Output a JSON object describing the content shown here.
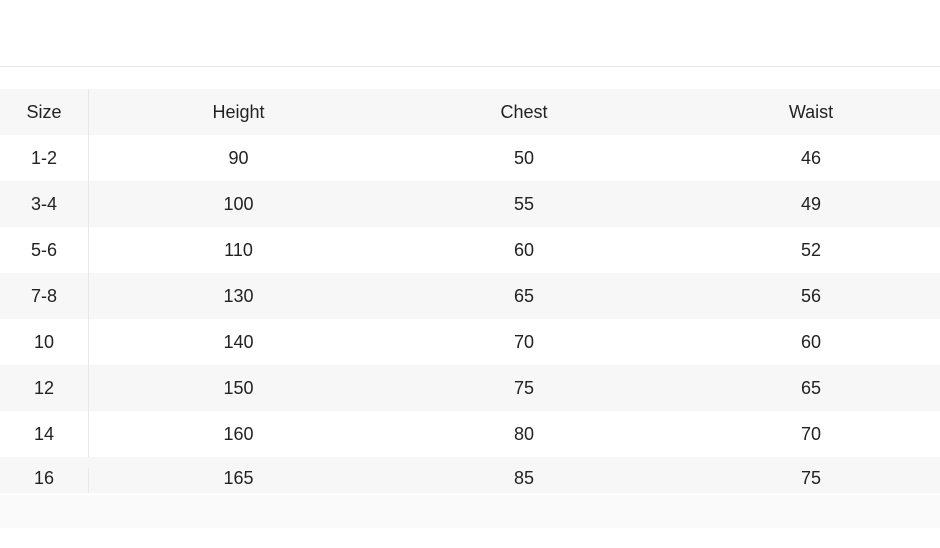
{
  "table": {
    "headers": [
      "Size",
      "Height",
      "Chest",
      "Waist"
    ],
    "rows": [
      [
        "1-2",
        "90",
        "50",
        "46"
      ],
      [
        "3-4",
        "100",
        "55",
        "49"
      ],
      [
        "5-6",
        "110",
        "60",
        "52"
      ],
      [
        "7-8",
        "130",
        "65",
        "56"
      ],
      [
        "10",
        "140",
        "70",
        "60"
      ],
      [
        "12",
        "150",
        "75",
        "65"
      ],
      [
        "14",
        "160",
        "80",
        "70"
      ],
      [
        "16",
        "165",
        "85",
        "75"
      ]
    ]
  }
}
